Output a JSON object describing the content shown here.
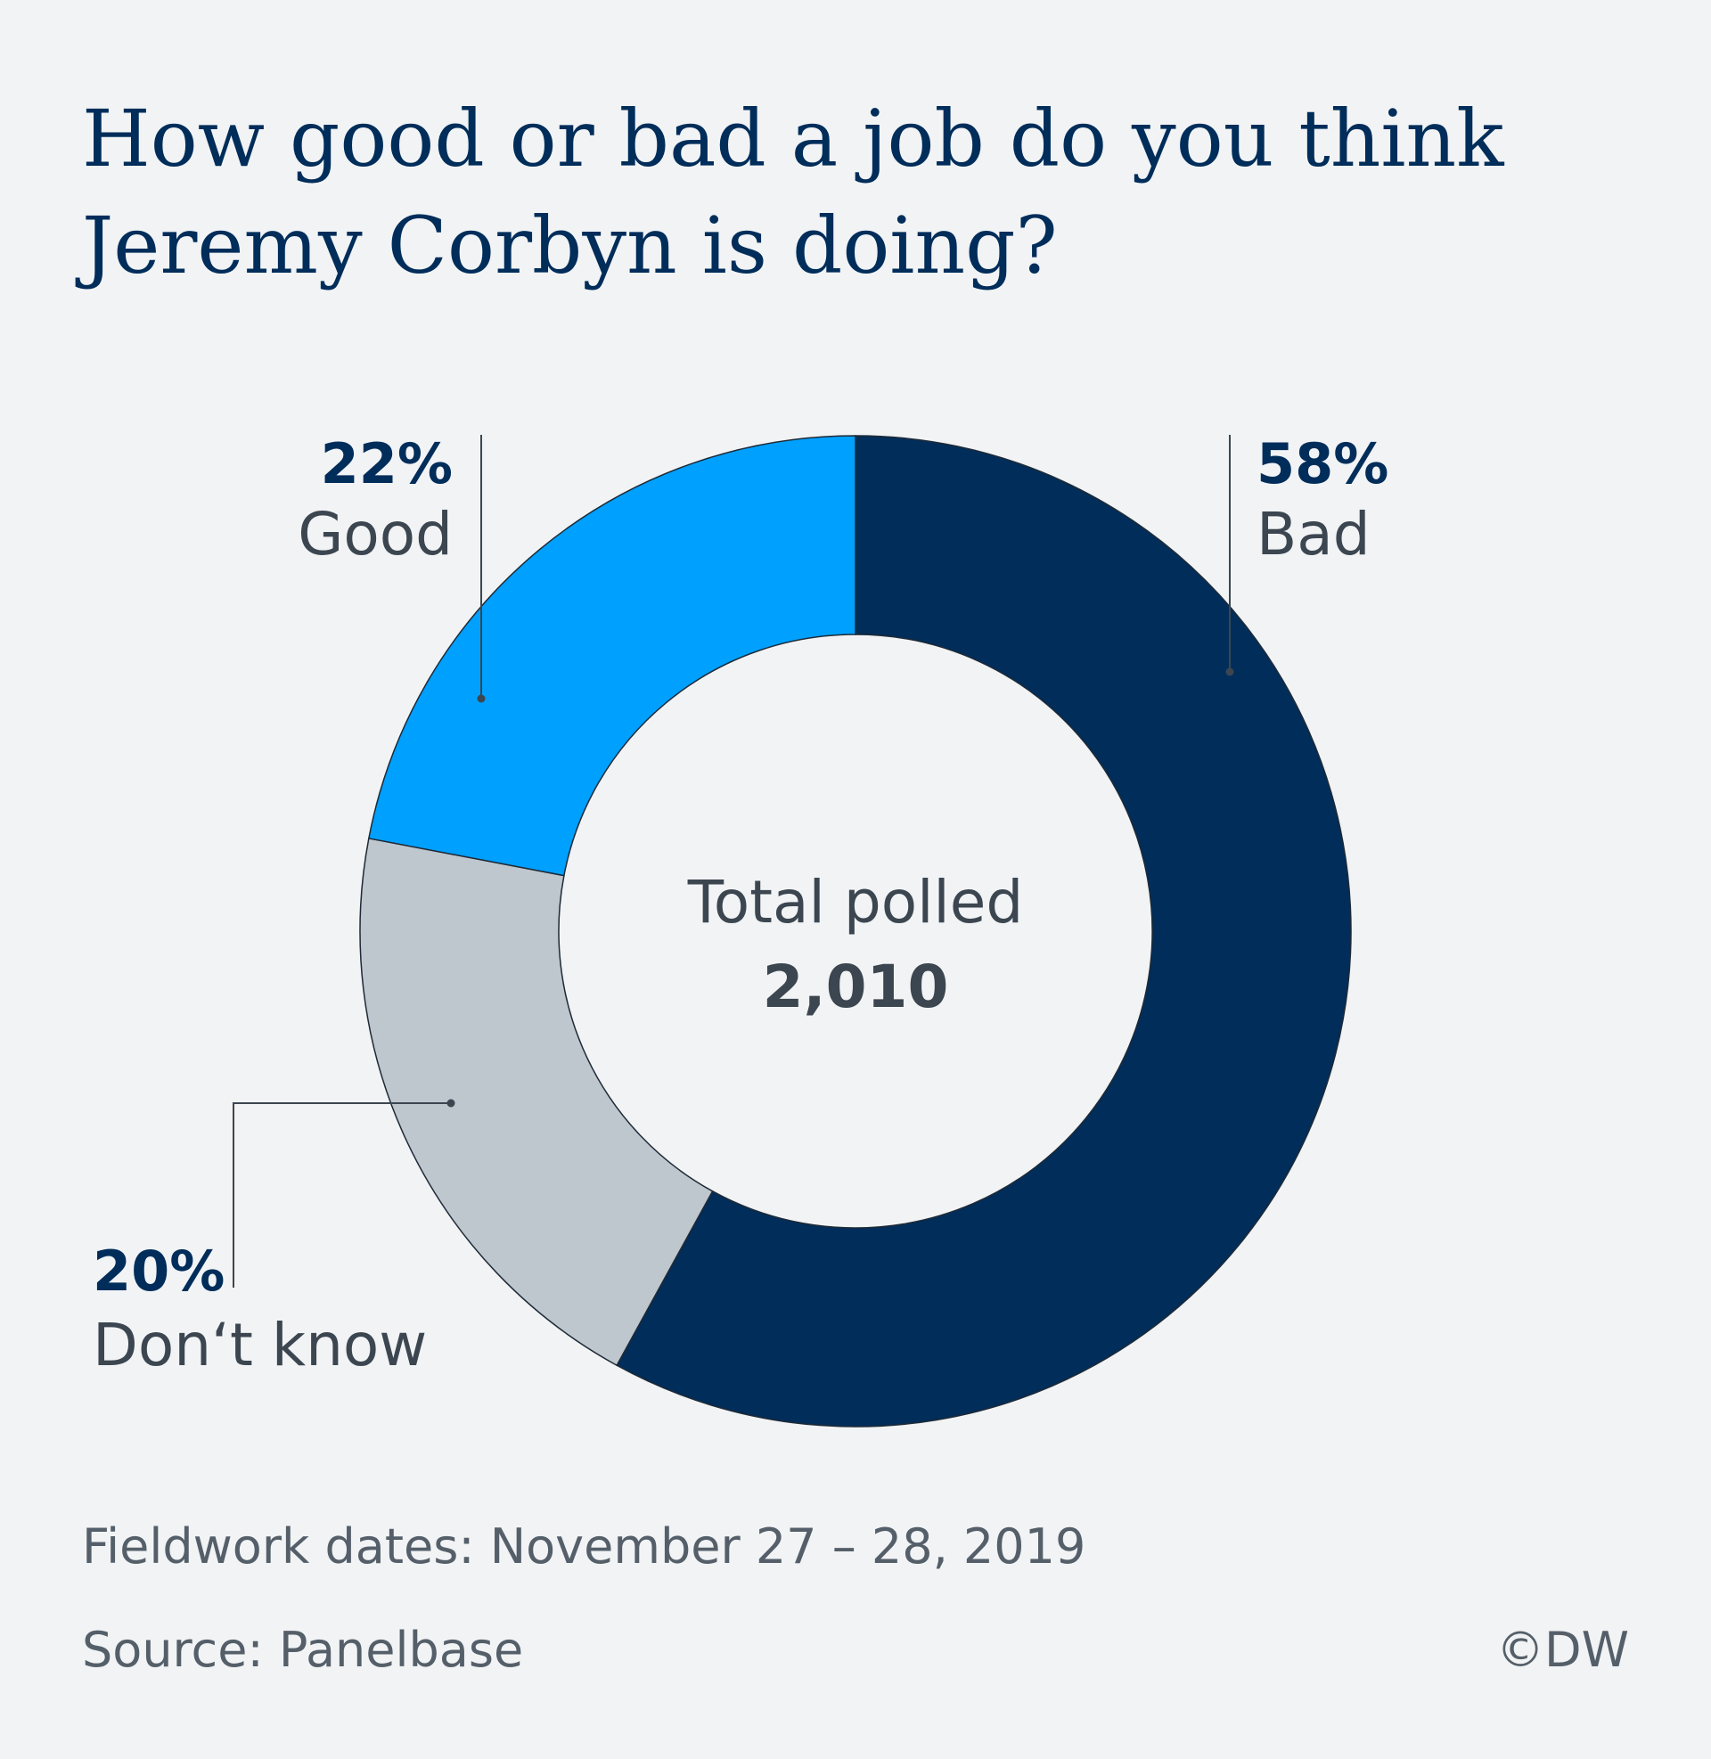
{
  "chart_data": {
    "type": "pie",
    "title": "How good or bad a job do you think Jeremy Corbyn is doing?",
    "center_label": "Total polled",
    "center_value": "2,010",
    "slices": [
      {
        "label": "Bad",
        "value": 58,
        "value_label": "58%",
        "color": "#002d5a"
      },
      {
        "label": "Don‘t know",
        "value": 20,
        "value_label": "20%",
        "color": "#bec6ce"
      },
      {
        "label": "Good",
        "value": 22,
        "value_label": "22%",
        "color": "#00a0ff"
      }
    ]
  },
  "footer": {
    "fieldwork": "Fieldwork dates: November 27 – 28, 2019",
    "source": "Source: Panelbase",
    "copyright": "©DW"
  },
  "colors": {
    "background": "#f1f3f5",
    "title": "#002d5a",
    "label_text": "#3c4650",
    "footer_text": "#555f69"
  }
}
